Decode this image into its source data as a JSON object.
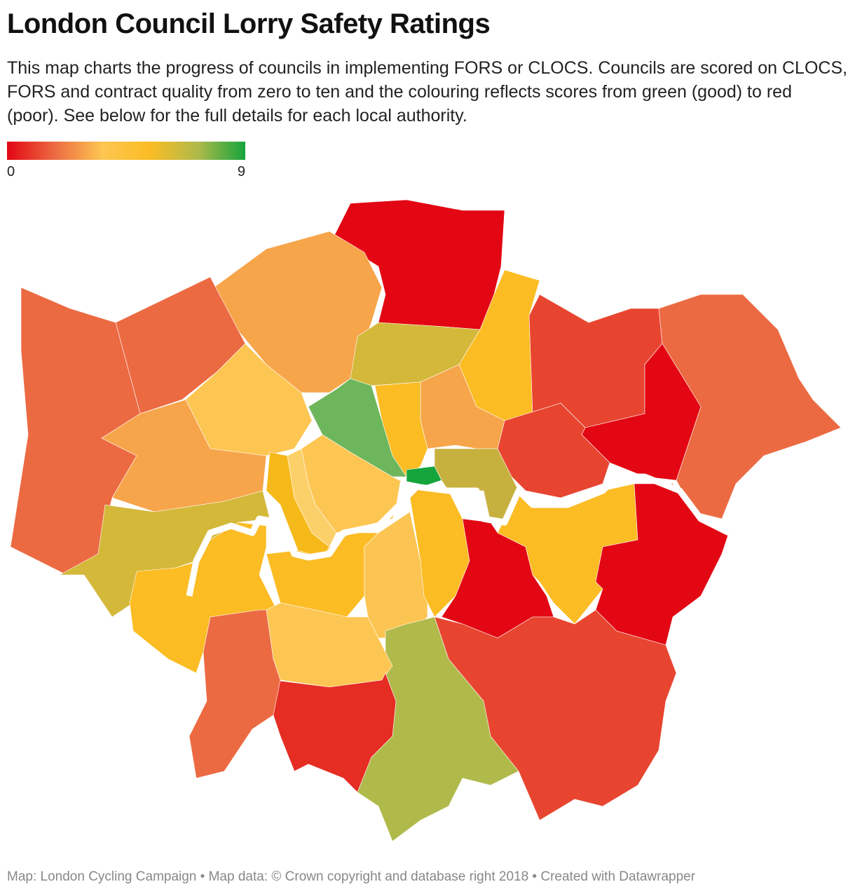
{
  "title": "London Council Lorry Safety Ratings",
  "description": "This map charts the progress of councils in implementing FORS or CLOCS. Councils are scored on CLOCS, FORS and contract quality from zero to ten and the colouring reflects scores from green (good) to red (poor). See below for the full details for each local authority.",
  "legend": {
    "ticks": [
      0,
      9
    ],
    "colors": [
      "#e30613",
      "#ec6a42",
      "#fdc652",
      "#fbbc24",
      "#b0ba4b",
      "#16a43c"
    ]
  },
  "footer": "Map: London Cycling Campaign • Map data: © Crown copyright and database right 2018  • Created with Datawrapper"
}
